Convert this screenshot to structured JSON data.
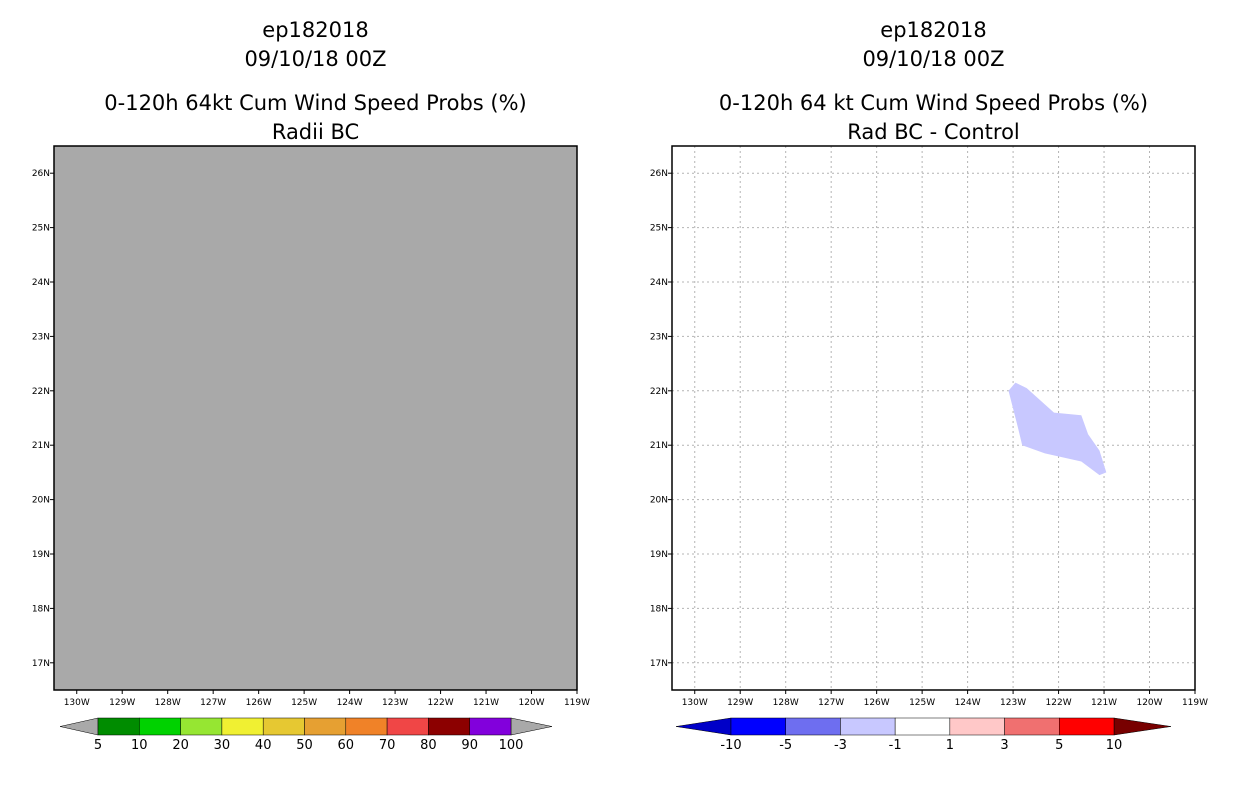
{
  "chart_data": [
    {
      "type": "map",
      "title_lines": [
        "ep182018",
        "09/10/18 00Z",
        "0-120h 64kt Cum Wind Speed Probs (%)",
        "Radii BC"
      ],
      "lon_range": [
        -130.5,
        -119
      ],
      "lat_range": [
        16.5,
        26.5
      ],
      "x_ticks": [
        -130,
        -129,
        -128,
        -127,
        -126,
        -125,
        -124,
        -123,
        -122,
        -121,
        -120,
        -119
      ],
      "x_tick_labels": [
        "130W",
        "129W",
        "128W",
        "127W",
        "126W",
        "125W",
        "124W",
        "123W",
        "122W",
        "121W",
        "120W",
        "119W"
      ],
      "y_ticks": [
        17,
        18,
        19,
        20,
        21,
        22,
        23,
        24,
        25,
        26
      ],
      "y_tick_labels": [
        "17N",
        "18N",
        "19N",
        "20N",
        "21N",
        "22N",
        "23N",
        "24N",
        "25N",
        "26N"
      ],
      "grid": false,
      "field": "no data (domain filled grey)",
      "fill_color": "#a9a9a9",
      "colorbar": {
        "colors": [
          "#008c00",
          "#00d200",
          "#96e632",
          "#f0f032",
          "#e6c832",
          "#e6a032",
          "#f08228",
          "#f04646",
          "#8c0000",
          "#8200dc"
        ],
        "end_colors": [
          "#a9a9a9",
          "#a9a9a9"
        ],
        "labels": [
          "5",
          "10",
          "20",
          "30",
          "40",
          "50",
          "60",
          "70",
          "80",
          "90",
          "100"
        ]
      }
    },
    {
      "type": "map",
      "title_lines": [
        "ep182018",
        "09/10/18 00Z",
        "0-120h 64 kt Cum Wind Speed Probs (%)",
        "Rad BC - Control"
      ],
      "lon_range": [
        -130.5,
        -119
      ],
      "lat_range": [
        16.5,
        26.5
      ],
      "x_ticks": [
        -130,
        -129,
        -128,
        -127,
        -126,
        -125,
        -124,
        -123,
        -122,
        -121,
        -120,
        -119
      ],
      "x_tick_labels": [
        "130W",
        "129W",
        "128W",
        "127W",
        "126W",
        "125W",
        "124W",
        "123W",
        "122W",
        "121W",
        "120W",
        "119W"
      ],
      "y_ticks": [
        17,
        18,
        19,
        20,
        21,
        22,
        23,
        24,
        25,
        26
      ],
      "y_tick_labels": [
        "17N",
        "18N",
        "19N",
        "20N",
        "21N",
        "22N",
        "23N",
        "24N",
        "25N",
        "26N"
      ],
      "grid": true,
      "fill_color": "#ffffff",
      "regions": [
        {
          "range": "-3 to -1",
          "color": "#c8c8ff",
          "polygon_lonlat": [
            [
              -123.1,
              22.0
            ],
            [
              -122.95,
              22.15
            ],
            [
              -122.7,
              22.05
            ],
            [
              -122.1,
              21.6
            ],
            [
              -121.5,
              21.55
            ],
            [
              -121.35,
              21.2
            ],
            [
              -121.1,
              20.9
            ],
            [
              -120.95,
              20.5
            ],
            [
              -121.1,
              20.45
            ],
            [
              -121.5,
              20.7
            ],
            [
              -122.3,
              20.85
            ],
            [
              -122.8,
              21.0
            ],
            [
              -122.9,
              21.35
            ]
          ]
        }
      ],
      "colorbar": {
        "colors": [
          "#0000ff",
          "#6e6ef0",
          "#c8c8ff",
          "#ffffff",
          "#ffc8c8",
          "#f07070",
          "#ff0000"
        ],
        "end_colors": [
          "#0000c8",
          "#780000"
        ],
        "labels": [
          "-10",
          "-5",
          "-3",
          "-1",
          "1",
          "3",
          "5",
          "10"
        ]
      }
    }
  ]
}
